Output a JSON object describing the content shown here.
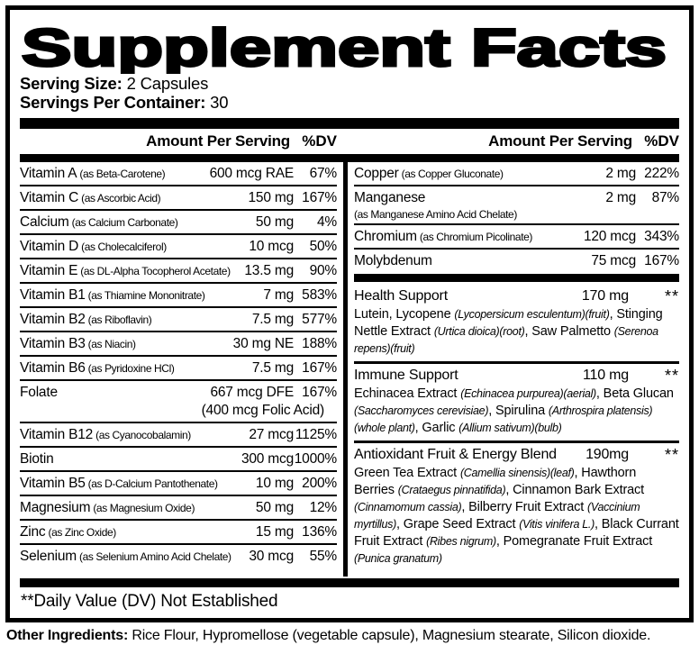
{
  "colors": {
    "ink": "#000000",
    "paper": "#ffffff"
  },
  "title": "Supplement Facts",
  "serving": {
    "size_label": "Serving Size:",
    "size_value": "2 Capsules",
    "container_label": "Servings Per Container:",
    "container_value": "30"
  },
  "headers": {
    "amount": "Amount Per Serving",
    "dv": "%DV"
  },
  "left_rows": [
    {
      "name": "Vitamin A",
      "sub": "(as Beta-Carotene)",
      "amt": "600 mcg RAE",
      "dv": "67%"
    },
    {
      "name": "Vitamin C",
      "sub": "(as Ascorbic Acid)",
      "amt": "150 mg",
      "dv": "167%"
    },
    {
      "name": "Calcium",
      "sub": "(as Calcium Carbonate)",
      "amt": "50 mg",
      "dv": "4%"
    },
    {
      "name": "Vitamin D",
      "sub": "(as Cholecalciferol)",
      "amt": "10 mcg",
      "dv": "50%"
    },
    {
      "name": "Vitamin E",
      "sub": "(as DL-Alpha Tocopherol Acetate)",
      "amt": "13.5 mg",
      "dv": "90%"
    },
    {
      "name": "Vitamin B1",
      "sub": "(as Thiamine Mononitrate)",
      "amt": "7 mg",
      "dv": "583%"
    },
    {
      "name": "Vitamin B2",
      "sub": "(as Riboflavin)",
      "amt": "7.5 mg",
      "dv": "577%"
    },
    {
      "name": "Vitamin B3",
      "sub": "(as Niacin)",
      "amt": "30 mg NE",
      "dv": "188%"
    },
    {
      "name": "Vitamin B6",
      "sub": "(as Pyridoxine HCl)",
      "amt": "7.5 mg",
      "dv": "167%"
    },
    {
      "name": "Folate",
      "sub": "",
      "amt": "667 mcg DFE",
      "amt2": "(400 mcg Folic Acid)",
      "dv": "167%"
    },
    {
      "name": "Vitamin B12",
      "sub": "(as Cyanocobalamin)",
      "amt": "27 mcg",
      "dv": "1125%"
    },
    {
      "name": "Biotin",
      "sub": "",
      "amt": "300 mcg",
      "dv": "1000%"
    },
    {
      "name": "Vitamin B5",
      "sub": "(as D-Calcium Pantothenate)",
      "amt": "10 mg",
      "dv": "200%"
    },
    {
      "name": "Magnesium",
      "sub": "(as Magnesium Oxide)",
      "amt": "50 mg",
      "dv": "12%"
    },
    {
      "name": "Zinc",
      "sub": "(as Zinc Oxide)",
      "amt": "15 mg",
      "dv": "136%"
    },
    {
      "name": "Selenium",
      "sub": "(as Selenium Amino Acid Chelate)",
      "amt": "30 mcg",
      "dv": "55%"
    }
  ],
  "right_rows": [
    {
      "name": "Copper",
      "sub": "(as Copper Gluconate)",
      "amt": "2 mg",
      "dv": "222%"
    },
    {
      "name": "Manganese",
      "sub": "(as Manganese Amino Acid Chelate)",
      "amt": "2 mg",
      "dv": "87%"
    },
    {
      "name": "Chromium",
      "sub": "(as Chromium Picolinate)",
      "amt": "120 mcg",
      "dv": "343%"
    },
    {
      "name": "Molybdenum",
      "sub": "",
      "amt": "75 mcg",
      "dv": "167%"
    }
  ],
  "blends": [
    {
      "name": "Health Support",
      "amt": "170 mg",
      "dv": "**",
      "desc": [
        {
          "t": "Lutein, Lycopene ",
          "i": false
        },
        {
          "t": "(Lycopersicum esculentum)(fruit)",
          "i": true
        },
        {
          "t": ", Stinging Nettle Extract ",
          "i": false
        },
        {
          "t": "(Urtica dioica)(root)",
          "i": true
        },
        {
          "t": ", Saw Palmetto ",
          "i": false
        },
        {
          "t": "(Serenoa repens)(fruit)",
          "i": true
        }
      ]
    },
    {
      "name": "Immune Support",
      "amt": "110 mg",
      "dv": "**",
      "desc": [
        {
          "t": "Echinacea Extract ",
          "i": false
        },
        {
          "t": "(Echinacea purpurea)(aerial)",
          "i": true
        },
        {
          "t": ", Beta Glucan ",
          "i": false
        },
        {
          "t": "(Saccharomyces cerevisiae)",
          "i": true
        },
        {
          "t": ", Spirulina ",
          "i": false
        },
        {
          "t": "(Arthrospira platensis)(whole plant)",
          "i": true
        },
        {
          "t": ", Garlic ",
          "i": false
        },
        {
          "t": "(Allium sativum)(bulb)",
          "i": true
        }
      ]
    },
    {
      "name": "Antioxidant Fruit & Energy Blend",
      "amt": "190mg",
      "dv": "**",
      "desc": [
        {
          "t": "Green Tea Extract ",
          "i": false
        },
        {
          "t": "(Camellia sinensis)(leaf)",
          "i": true
        },
        {
          "t": ", Hawthorn Berries ",
          "i": false
        },
        {
          "t": "(Crataegus pinnatifida)",
          "i": true
        },
        {
          "t": ", Cinnamon Bark Extract ",
          "i": false
        },
        {
          "t": "(Cinnamomum cassia)",
          "i": true
        },
        {
          "t": ", Bilberry Fruit Extract ",
          "i": false
        },
        {
          "t": "(Vaccinium myrtillus)",
          "i": true
        },
        {
          "t": ", Grape Seed Extract ",
          "i": false
        },
        {
          "t": "(Vitis vinifera L.)",
          "i": true
        },
        {
          "t": ", Black Currant Fruit Extract ",
          "i": false
        },
        {
          "t": "(Ribes nigrum)",
          "i": true
        },
        {
          "t": ", Pomegranate Fruit Extract ",
          "i": false
        },
        {
          "t": "(Punica granatum)",
          "i": true
        }
      ]
    }
  ],
  "footnote": "**Daily Value (DV) Not Established",
  "other_ingredients": {
    "label": "Other Ingredients:",
    "text": "Rice Flour, Hypromellose (vegetable capsule), Magnesium stearate, Silicon dioxide."
  }
}
